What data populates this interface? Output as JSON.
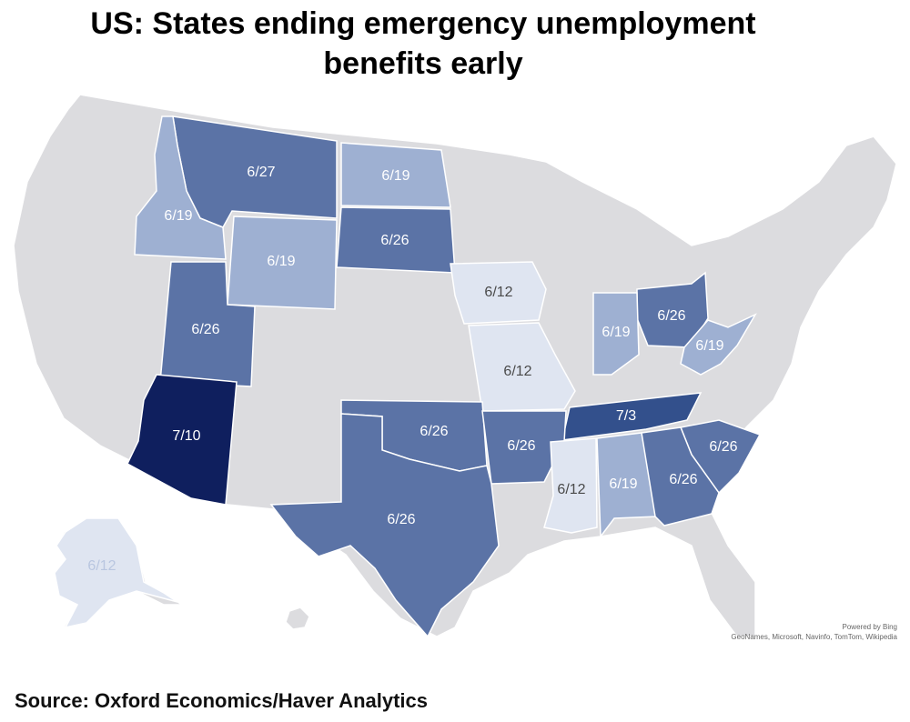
{
  "title": {
    "line1": "US: States ending emergency unemployment",
    "line2": "benefits early"
  },
  "source": "Source: Oxford Economics/Haver Analytics",
  "attribution": {
    "line1": "Powered by Bing",
    "line2": "GeoNames, Microsoft, Navinfo, TomTom, Wikipedia"
  },
  "colors": {
    "background": "#ffffff",
    "land_default": "#dcdcdf",
    "border": "#ffffff",
    "date_6_12": "#dfe5f1",
    "date_6_19": "#9eb0d2",
    "date_6_26": "#5b73a6",
    "date_6_27": "#5b73a6",
    "date_7_3": "#33508c",
    "date_7_10": "#0f1f5e",
    "label_light": "#ffffff",
    "label_dark": "#4a4a4a"
  },
  "states": [
    {
      "name": "Montana",
      "abbr": "MT",
      "date": "6/27",
      "color_key": "date_6_27"
    },
    {
      "name": "North Dakota",
      "abbr": "ND",
      "date": "6/19",
      "color_key": "date_6_19"
    },
    {
      "name": "Idaho",
      "abbr": "ID",
      "date": "6/19",
      "color_key": "date_6_19"
    },
    {
      "name": "South Dakota",
      "abbr": "SD",
      "date": "6/26",
      "color_key": "date_6_26"
    },
    {
      "name": "Wyoming",
      "abbr": "WY",
      "date": "6/19",
      "color_key": "date_6_19"
    },
    {
      "name": "Iowa",
      "abbr": "IA",
      "date": "6/12",
      "color_key": "date_6_12"
    },
    {
      "name": "Utah",
      "abbr": "UT",
      "date": "6/26",
      "color_key": "date_6_26"
    },
    {
      "name": "Ohio",
      "abbr": "OH",
      "date": "6/26",
      "color_key": "date_6_26"
    },
    {
      "name": "Indiana",
      "abbr": "IN",
      "date": "6/19",
      "color_key": "date_6_19"
    },
    {
      "name": "West Virginia",
      "abbr": "WV",
      "date": "6/19",
      "color_key": "date_6_19"
    },
    {
      "name": "Missouri",
      "abbr": "MO",
      "date": "6/12",
      "color_key": "date_6_12"
    },
    {
      "name": "Arizona",
      "abbr": "AZ",
      "date": "7/10",
      "color_key": "date_7_10"
    },
    {
      "name": "Tennessee",
      "abbr": "TN",
      "date": "7/3",
      "color_key": "date_7_3"
    },
    {
      "name": "Oklahoma",
      "abbr": "OK",
      "date": "6/26",
      "color_key": "date_6_26"
    },
    {
      "name": "Arkansas",
      "abbr": "AR",
      "date": "6/26",
      "color_key": "date_6_26"
    },
    {
      "name": "South Carolina",
      "abbr": "SC",
      "date": "6/26",
      "color_key": "date_6_26"
    },
    {
      "name": "Mississippi",
      "abbr": "MS",
      "date": "6/12",
      "color_key": "date_6_12"
    },
    {
      "name": "Alabama",
      "abbr": "AL",
      "date": "6/19",
      "color_key": "date_6_19"
    },
    {
      "name": "Georgia",
      "abbr": "GA",
      "date": "6/26",
      "color_key": "date_6_26"
    },
    {
      "name": "Texas",
      "abbr": "TX",
      "date": "6/26",
      "color_key": "date_6_26"
    },
    {
      "name": "Alaska",
      "abbr": "AK",
      "date": "6/12",
      "color_key": "date_6_12"
    }
  ]
}
